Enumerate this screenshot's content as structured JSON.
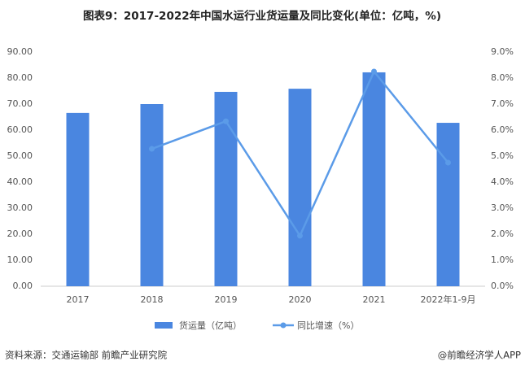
{
  "chart_data": {
    "type": "bar-line",
    "title": "图表9：2017-2022年中国水运行业货运量及同比变化(单位：亿吨，%)",
    "categories": [
      "2017",
      "2018",
      "2019",
      "2020",
      "2021",
      "2022年1-9月"
    ],
    "series": [
      {
        "name": "货运量（亿吨）",
        "type": "bar",
        "color": "#4a86e0",
        "values": [
          66.6,
          70.0,
          74.7,
          75.9,
          82.2,
          62.8
        ]
      },
      {
        "name": "同比增速（%）",
        "type": "line",
        "axis": "y2",
        "color": "#5b9be8",
        "values": [
          null,
          5.28,
          6.34,
          1.94,
          8.25,
          4.75
        ]
      }
    ],
    "ylim": [
      0,
      90
    ],
    "yticks": [
      {
        "value": 0,
        "label": "0.00"
      },
      {
        "value": 10,
        "label": "10.00"
      },
      {
        "value": 20,
        "label": "20.00"
      },
      {
        "value": 30,
        "label": "30.00"
      },
      {
        "value": 40,
        "label": "40.00"
      },
      {
        "value": 50,
        "label": "50.00"
      },
      {
        "value": 60,
        "label": "60.00"
      },
      {
        "value": 70,
        "label": "70.00"
      },
      {
        "value": 80,
        "label": "80.00"
      },
      {
        "value": 90,
        "label": "90.00"
      }
    ],
    "y2lim": [
      0,
      9
    ],
    "y2ticks": [
      {
        "value": 0,
        "label": "0.0%"
      },
      {
        "value": 1,
        "label": "1.0%"
      },
      {
        "value": 2,
        "label": "2.0%"
      },
      {
        "value": 3,
        "label": "3.0%"
      },
      {
        "value": 4,
        "label": "4.0%"
      },
      {
        "value": 5,
        "label": "5.0%"
      },
      {
        "value": 6,
        "label": "6.0%"
      },
      {
        "value": 7,
        "label": "7.0%"
      },
      {
        "value": 8,
        "label": "8.0%"
      },
      {
        "value": 9,
        "label": "9.0%"
      }
    ],
    "legend": "bottom"
  },
  "footer": {
    "source": "资料来源：交通运输部 前瞻产业研究院",
    "brand": "@前瞻经济学人APP"
  }
}
